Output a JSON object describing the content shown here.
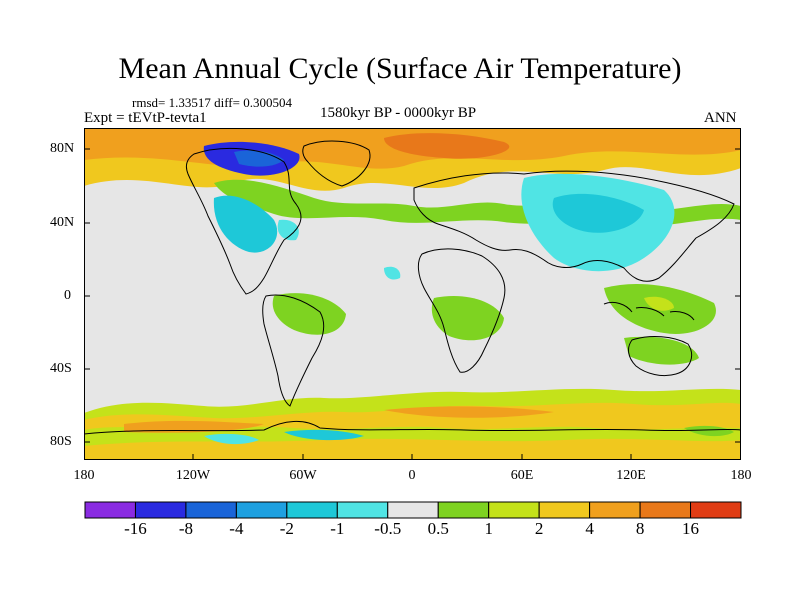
{
  "title": "Mean Annual Cycle (Surface Air Temperature)",
  "stats_line": "rmsd= 1.33517 diff= 0.300504",
  "experiment": "Expt = tEVtP-tevta1",
  "period": "1580kyr BP - 0000kyr BP",
  "season": "ANN",
  "lat_labels": [
    "80N",
    "40N",
    "0",
    "40S",
    "80S"
  ],
  "lon_labels": [
    "180",
    "120W",
    "60W",
    "0",
    "60E",
    "120E",
    "180"
  ],
  "colorbar": {
    "colors": [
      "#8a2be2",
      "#2a2ae0",
      "#1a64d8",
      "#1ea0e0",
      "#1ec8d8",
      "#50e4e4",
      "#e6e6e6",
      "#7ed321",
      "#c4e21a",
      "#f0c81e",
      "#f0a01e",
      "#e8781a",
      "#e03c14"
    ],
    "labels": [
      "-16",
      "-8",
      "-4",
      "-2",
      "-1",
      "-0.5",
      "0.5",
      "1",
      "2",
      "4",
      "8",
      "16"
    ]
  }
}
